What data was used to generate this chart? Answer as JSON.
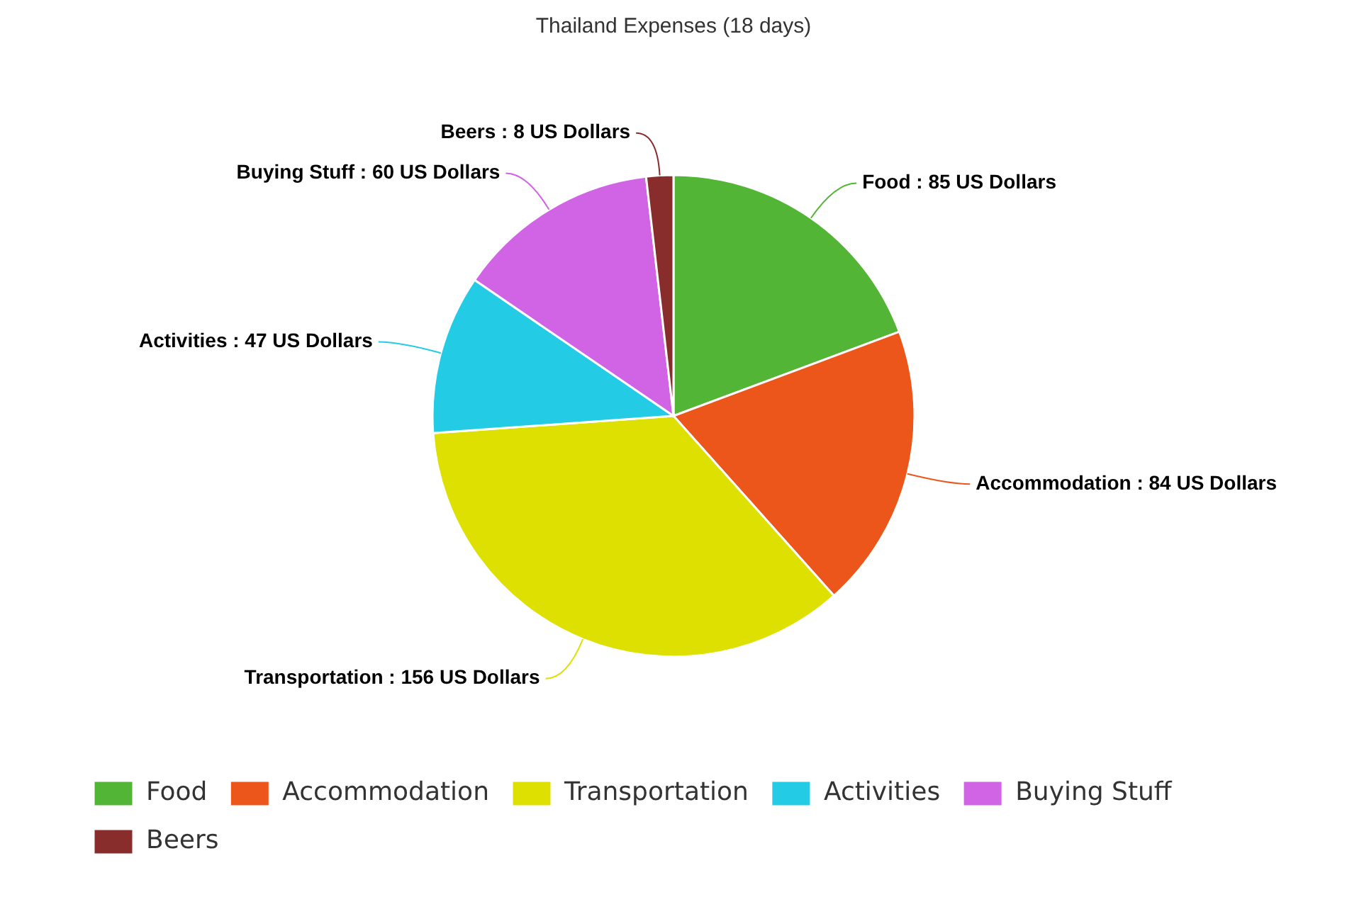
{
  "chart_data": {
    "type": "pie",
    "title": "Thailand Expenses (18 days)",
    "categories": [
      "Food",
      "Accommodation",
      "Transportation",
      "Activities",
      "Buying Stuff",
      "Beers"
    ],
    "values": [
      85,
      84,
      156,
      47,
      60,
      8
    ],
    "colors": [
      "#52b535",
      "#ec561b",
      "#dde000",
      "#24cbe5",
      "#d164e5",
      "#882c2c"
    ],
    "value_labels": [
      "Food : 85 US Dollars",
      "Accommodation : 84 US Dollars",
      "Transportation : 156 US Dollars",
      "Activities : 47 US Dollars",
      "Buying Stuff : 60 US Dollars",
      "Beers : 8 US Dollars"
    ],
    "legend": "bottom"
  }
}
